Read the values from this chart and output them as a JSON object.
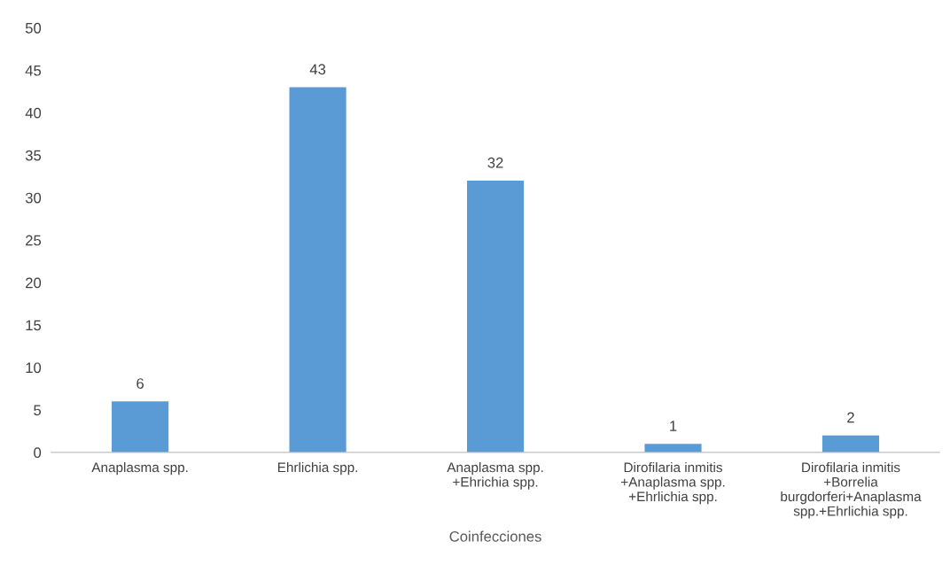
{
  "chart_data": {
    "type": "bar",
    "xlabel": "Coinfecciones",
    "categories": [
      "Anaplasma spp.",
      "Ehrlichia spp.",
      "Anaplasma spp.\n+Ehrichia spp.",
      "Dirofilaria inmitis\n+Anaplasma spp.\n+Ehrlichia spp.",
      "Dirofilaria inmitis\n+Borrelia\nburgdorferi+Anaplasma\nspp.+Ehrlichia spp."
    ],
    "values": [
      6,
      43,
      32,
      1,
      2
    ],
    "color": "#5b9bd5",
    "ylim": [
      0,
      50
    ],
    "yticks": [
      0,
      5,
      10,
      15,
      20,
      25,
      30,
      35,
      40,
      45,
      50
    ],
    "grid": false,
    "data_labels": true
  }
}
